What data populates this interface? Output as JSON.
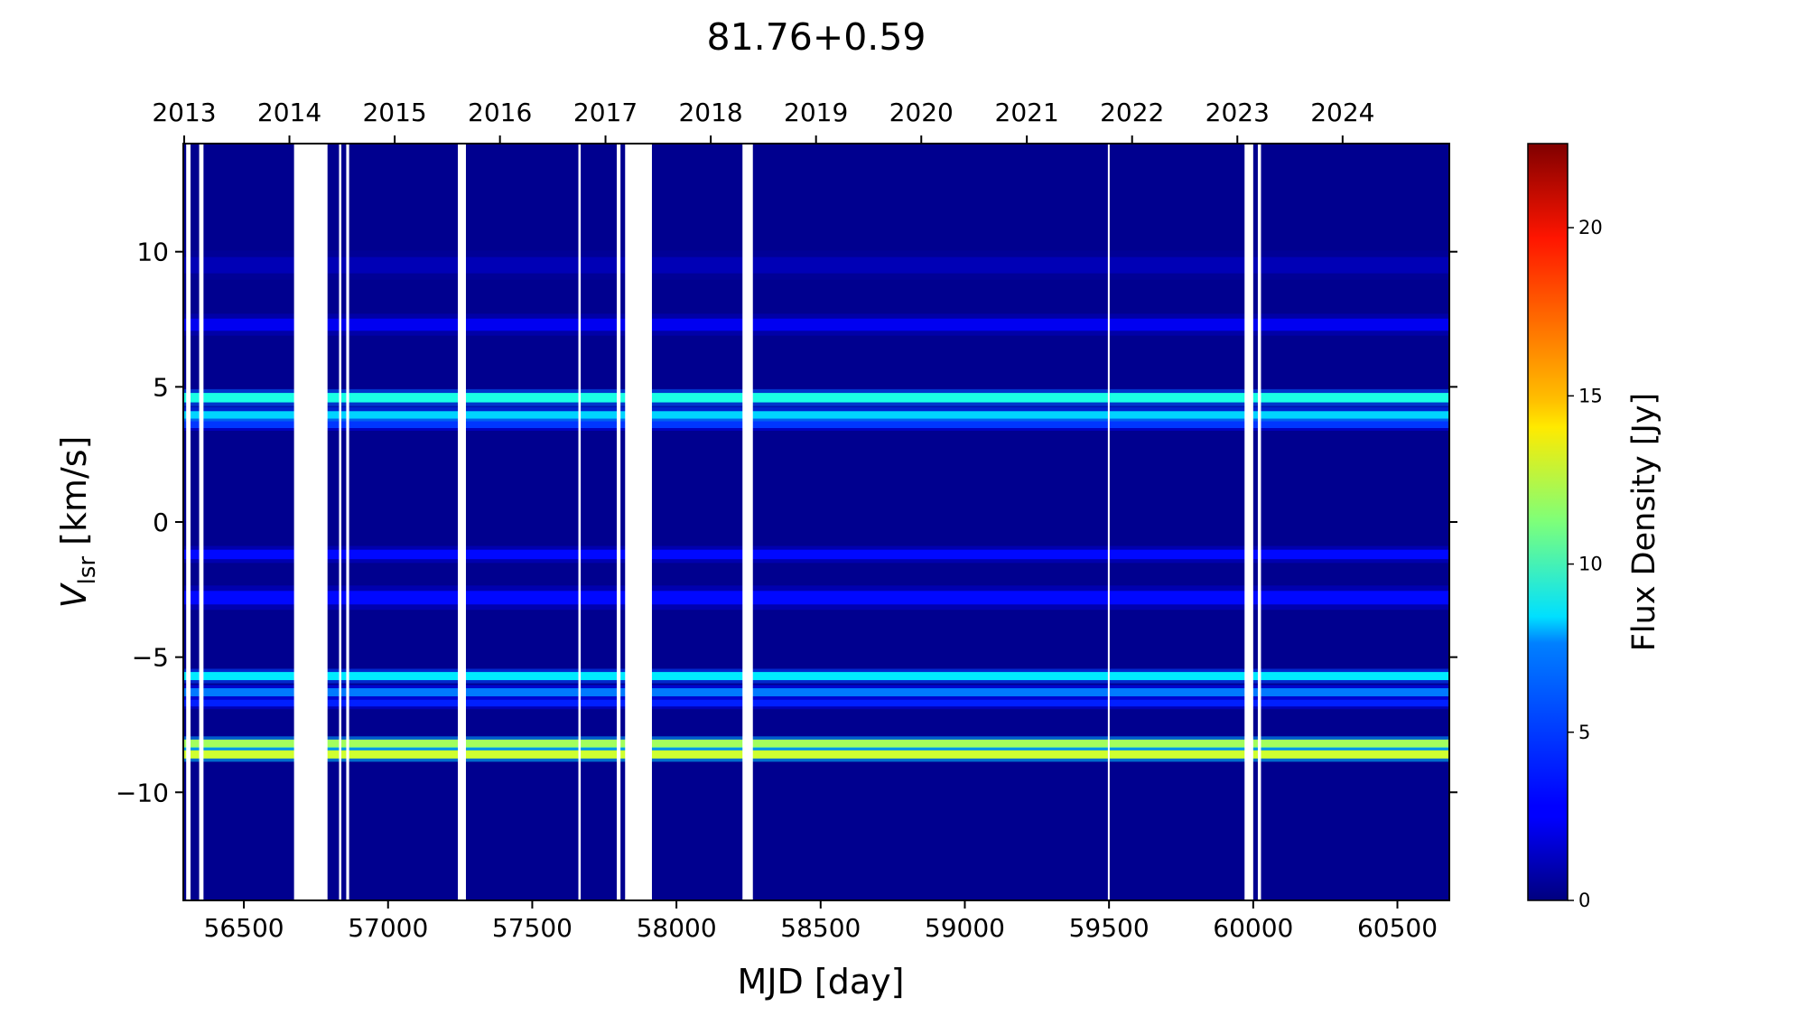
{
  "chart_data": {
    "type": "heatmap",
    "title": "81.76+0.59",
    "xlabel": "MJD [day]",
    "ylabel_main": "V",
    "ylabel_sub": "lsr",
    "ylabel_unit": " [km/s]",
    "colorbar_label": "Flux Density [Jy]",
    "xlim": [
      56290,
      60680
    ],
    "ylim": [
      -14,
      14
    ],
    "clim": [
      0,
      22.5
    ],
    "colormap": "jet",
    "x_ticks": [
      56500,
      57000,
      57500,
      58000,
      58500,
      59000,
      59500,
      60000,
      60500
    ],
    "x_tick_labels": [
      "56500",
      "57000",
      "57500",
      "58000",
      "58500",
      "59000",
      "59500",
      "60000",
      "60500"
    ],
    "y_ticks": [
      10,
      5,
      0,
      -5,
      -10
    ],
    "y_tick_labels": [
      "10",
      "5",
      "0",
      "−5",
      "−10"
    ],
    "top_axis_years": [
      "2013",
      "2014",
      "2015",
      "2016",
      "2017",
      "2018",
      "2019",
      "2020",
      "2021",
      "2022",
      "2023",
      "2024"
    ],
    "top_axis_mjd": [
      56293,
      56658,
      57023,
      57388,
      57754,
      58119,
      58484,
      58849,
      59215,
      59580,
      59945,
      60310
    ],
    "colorbar_ticks": [
      0,
      5,
      10,
      15,
      20
    ],
    "colorbar_tick_labels": [
      "0",
      "5",
      "10",
      "15",
      "20"
    ],
    "spectral_features": [
      {
        "velocity": 9.5,
        "width": 0.6,
        "flux": 1.2
      },
      {
        "velocity": 7.3,
        "width": 0.45,
        "flux": 2.5
      },
      {
        "velocity": 4.6,
        "width": 0.35,
        "flux": 9.0
      },
      {
        "velocity": 3.9,
        "width": 0.4,
        "flux": 7.5
      },
      {
        "velocity": 3.6,
        "width": 0.25,
        "flux": 4.0
      },
      {
        "velocity": -1.2,
        "width": 0.35,
        "flux": 3.0
      },
      {
        "velocity": -2.8,
        "width": 0.5,
        "flux": 3.0
      },
      {
        "velocity": -5.7,
        "width": 0.3,
        "flux": 8.0
      },
      {
        "velocity": -6.3,
        "width": 0.3,
        "flux": 5.5
      },
      {
        "velocity": -6.7,
        "width": 0.25,
        "flux": 3.5
      },
      {
        "velocity": -8.2,
        "width": 0.3,
        "flux": 12.0
      },
      {
        "velocity": -8.6,
        "width": 0.3,
        "flux": 13.0
      }
    ],
    "data_gaps_mjd": [
      [
        56300,
        56315
      ],
      [
        56345,
        56360
      ],
      [
        56674,
        56790
      ],
      [
        56830,
        56838
      ],
      [
        56855,
        56865
      ],
      [
        57242,
        57270
      ],
      [
        57660,
        57668
      ],
      [
        57793,
        57806
      ],
      [
        57822,
        57915
      ],
      [
        58229,
        58265
      ],
      [
        59496,
        59502
      ],
      [
        59970,
        60000
      ],
      [
        60016,
        60027
      ]
    ]
  }
}
